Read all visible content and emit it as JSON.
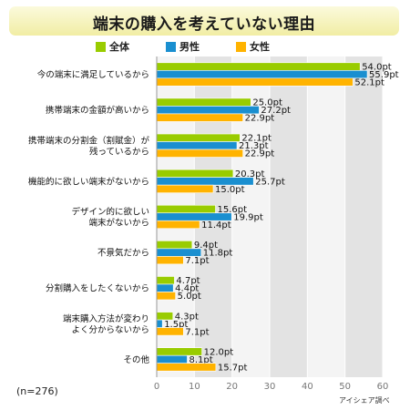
{
  "chart_data": {
    "type": "bar",
    "orientation": "horizontal",
    "title": "端末の購入を考えていない理由",
    "categories": [
      [
        "今の端末に満足しているから"
      ],
      [
        "携帯端末の金額が高いから"
      ],
      [
        "携帯端末の分割金（割賦金）が",
        "残っているから"
      ],
      [
        "機能的に欲しい端末がないから"
      ],
      [
        "デザイン的に欲しい",
        "端末がないから"
      ],
      [
        "不景気だから"
      ],
      [
        "分割購入をしたくないから"
      ],
      [
        "端末購入方法が変わり",
        "よく分からないから"
      ],
      [
        "その他"
      ]
    ],
    "series": [
      {
        "name": "全体",
        "color": "#99cc00",
        "values": [
          54.0,
          25.0,
          22.1,
          20.3,
          15.6,
          9.4,
          4.7,
          4.3,
          12.0
        ],
        "labels": [
          "54.0pt",
          "25.0pt",
          "22.1pt",
          "20.3pt",
          "15.6pt",
          "9.4pt",
          "4.7pt",
          "4.3pt",
          "12.0pt"
        ]
      },
      {
        "name": "男性",
        "color": "#1a8fd0",
        "values": [
          55.9,
          27.2,
          21.3,
          25.7,
          19.9,
          11.8,
          4.4,
          1.5,
          8.1
        ],
        "labels": [
          "55.9pt",
          "27.2pt",
          "21.3pt",
          "25.7pt",
          "19.9pt",
          "11.8pt",
          "4.4pt",
          "1.5pt",
          "8.1pt"
        ]
      },
      {
        "name": "女性",
        "color": "#ffb300",
        "values": [
          52.1,
          22.9,
          22.9,
          15.0,
          11.4,
          7.1,
          5.0,
          7.1,
          15.7
        ],
        "labels": [
          "52.1pt",
          "22.9pt",
          "22.9pt",
          "15.0pt",
          "11.4pt",
          "7.1pt",
          "5.0pt",
          "7.1pt",
          "15.7pt"
        ]
      }
    ],
    "xlim": [
      0,
      60
    ],
    "xticks": [
      "0",
      "10",
      "20",
      "30",
      "40",
      "50",
      "60"
    ],
    "grid": true,
    "legend_position": "top"
  },
  "sample_size": "(n=276)",
  "source": "アイシェア調べ"
}
